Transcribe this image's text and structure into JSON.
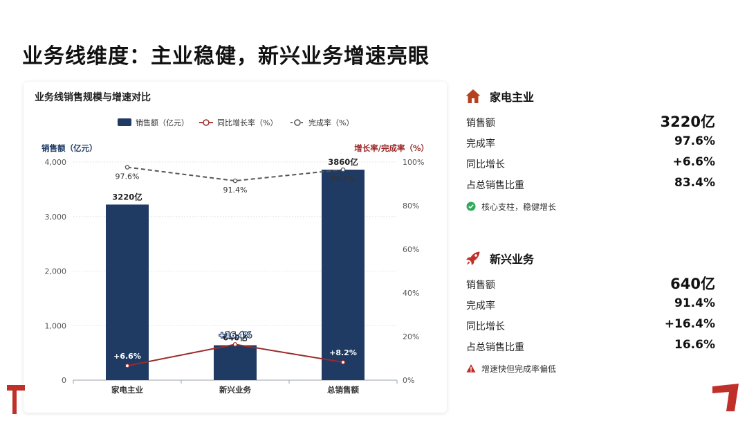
{
  "slide": {
    "title": "业务线维度：主业稳健，新兴业务增速亮眼"
  },
  "chart_data": {
    "type": "bar",
    "title": "业务线销售规模与增速对比",
    "categories": [
      "家电主业",
      "新兴业务",
      "总销售额"
    ],
    "ylabel": "销售额（亿元）",
    "y2label": "增长率/完成率（%）",
    "ylim": [
      0,
      4000
    ],
    "y2lim": [
      0,
      100
    ],
    "yticks": [
      "0",
      "1,000",
      "2,000",
      "3,000",
      "4,000"
    ],
    "y2ticks": [
      "0%",
      "20%",
      "40%",
      "60%",
      "80%",
      "100%"
    ],
    "legend_position": "top-center",
    "grid": true,
    "series": [
      {
        "name": "销售额（亿元）",
        "kind": "bar",
        "axis": "left",
        "color": "#1f3b64",
        "values": [
          3220,
          640,
          3860
        ],
        "labels": [
          "3220亿",
          "640亿",
          "3860亿"
        ]
      },
      {
        "name": "同比增长率（%）",
        "kind": "line",
        "axis": "right",
        "color": "#9b2a2a",
        "values": [
          6.6,
          16.4,
          8.2
        ],
        "labels": [
          "+6.6%",
          "+16.4%",
          "+8.2%"
        ]
      },
      {
        "name": "完成率（%）",
        "kind": "line-dashed",
        "axis": "right",
        "color": "#555555",
        "values": [
          97.6,
          91.4,
          96.5
        ],
        "labels": [
          "97.6%",
          "91.4%",
          "96.5%"
        ]
      }
    ]
  },
  "panels": [
    {
      "title": "家电主业",
      "icon": "home-icon",
      "accent": "#b5421f",
      "rows": [
        {
          "label": "销售额",
          "value": "3220亿"
        },
        {
          "label": "完成率",
          "value": "97.6%"
        },
        {
          "label": "同比增长",
          "value": "+6.6%"
        },
        {
          "label": "占总销售比重",
          "value": "83.4%"
        }
      ],
      "note": "核心支柱，稳健增长",
      "note_icon": "check-circle-icon",
      "note_color": "#2eaa5c"
    },
    {
      "title": "新兴业务",
      "icon": "rocket-icon",
      "accent": "#c0302a",
      "rows": [
        {
          "label": "销售额",
          "value": "640亿"
        },
        {
          "label": "完成率",
          "value": "91.4%"
        },
        {
          "label": "同比增长",
          "value": "+16.4%"
        },
        {
          "label": "占总销售比重",
          "value": "16.6%"
        }
      ],
      "note": "增速快但完成率偏低",
      "note_icon": "warning-icon",
      "note_color": "#c0302a"
    }
  ]
}
